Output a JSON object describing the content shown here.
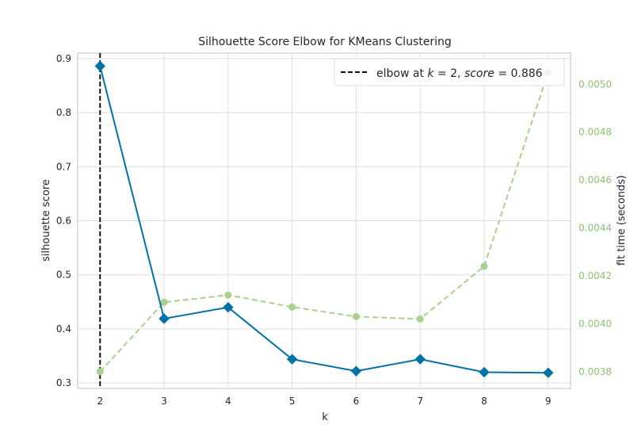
{
  "chart_data": {
    "type": "line",
    "title": "Silhouette Score Elbow for KMeans Clustering",
    "xlabel": "k",
    "ylabel": "silhouette score",
    "y2label": "fit time (seconds)",
    "x": [
      2,
      3,
      4,
      5,
      6,
      7,
      8,
      9
    ],
    "xticks": [
      "2",
      "3",
      "4",
      "5",
      "6",
      "7",
      "8",
      "9"
    ],
    "xlim": [
      1.65,
      9.35
    ],
    "ylim": [
      0.29,
      0.91
    ],
    "yticks": [
      "0.3",
      "0.4",
      "0.5",
      "0.6",
      "0.7",
      "0.8",
      "0.9"
    ],
    "y2lim": [
      0.00373,
      0.00513
    ],
    "y2ticks": [
      "0.0038",
      "0.0040",
      "0.0042",
      "0.0044",
      "0.0046",
      "0.0048",
      "0.0050"
    ],
    "grid": true,
    "legend_position": "top-right",
    "series": [
      {
        "axis": "left",
        "color": "#0072a6",
        "marker": "diamond",
        "linestyle": "solid",
        "values": [
          0.886,
          0.419,
          0.44,
          0.344,
          0.322,
          0.344,
          0.32,
          0.319
        ]
      },
      {
        "axis": "right",
        "color": "#a9d18e",
        "marker": "circle",
        "linestyle": "dashed",
        "values": [
          0.0038,
          0.00409,
          0.00412,
          0.00407,
          0.00403,
          0.00402,
          0.00424,
          0.00505
        ]
      }
    ],
    "elbow": {
      "k": 2,
      "score": "0.886",
      "color": "#111111",
      "label_prefix": "elbow at ",
      "label_k_var": "k",
      "label_eq": " = 2, ",
      "label_score_var": "score",
      "label_score_val": " = 0.886"
    },
    "right_axis_color": "#8cc270"
  }
}
